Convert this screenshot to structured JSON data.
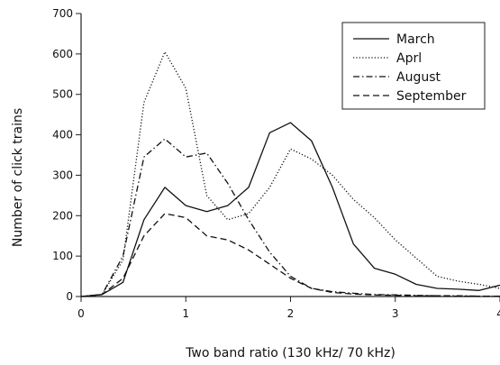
{
  "chart_data": {
    "type": "line",
    "xlabel": "Two band ratio (130 kHz/ 70 kHz)",
    "ylabel": "Number of click trains",
    "xlim": [
      0,
      4
    ],
    "ylim": [
      0,
      700
    ],
    "xticks": [
      0,
      1,
      2,
      3,
      4
    ],
    "yticks": [
      0,
      100,
      200,
      300,
      400,
      500,
      600,
      700
    ],
    "grid": false,
    "legend_position": "top-right",
    "x": [
      0,
      0.2,
      0.4,
      0.6,
      0.8,
      1.0,
      1.2,
      1.4,
      1.6,
      1.8,
      2.0,
      2.2,
      2.4,
      2.6,
      2.8,
      3.0,
      3.2,
      3.4,
      3.6,
      3.8,
      4.0
    ],
    "series": [
      {
        "name": "March",
        "dash": "solid",
        "values": [
          0,
          5,
          35,
          190,
          270,
          225,
          210,
          225,
          270,
          405,
          430,
          385,
          270,
          130,
          70,
          55,
          30,
          20,
          18,
          15,
          28
        ]
      },
      {
        "name": "Aprl",
        "dash": "dotted",
        "values": [
          0,
          5,
          90,
          480,
          605,
          515,
          250,
          190,
          205,
          270,
          365,
          340,
          300,
          240,
          195,
          140,
          95,
          50,
          38,
          30,
          20
        ]
      },
      {
        "name": "August",
        "dash": "dashdot",
        "values": [
          0,
          5,
          100,
          345,
          390,
          345,
          355,
          280,
          190,
          110,
          50,
          20,
          12,
          8,
          5,
          4,
          3,
          2,
          2,
          1,
          1
        ]
      },
      {
        "name": "September",
        "dash": "dashed",
        "values": [
          0,
          5,
          45,
          150,
          205,
          195,
          150,
          140,
          115,
          80,
          45,
          20,
          10,
          6,
          4,
          3,
          2,
          2,
          1,
          1,
          1
        ]
      }
    ]
  }
}
